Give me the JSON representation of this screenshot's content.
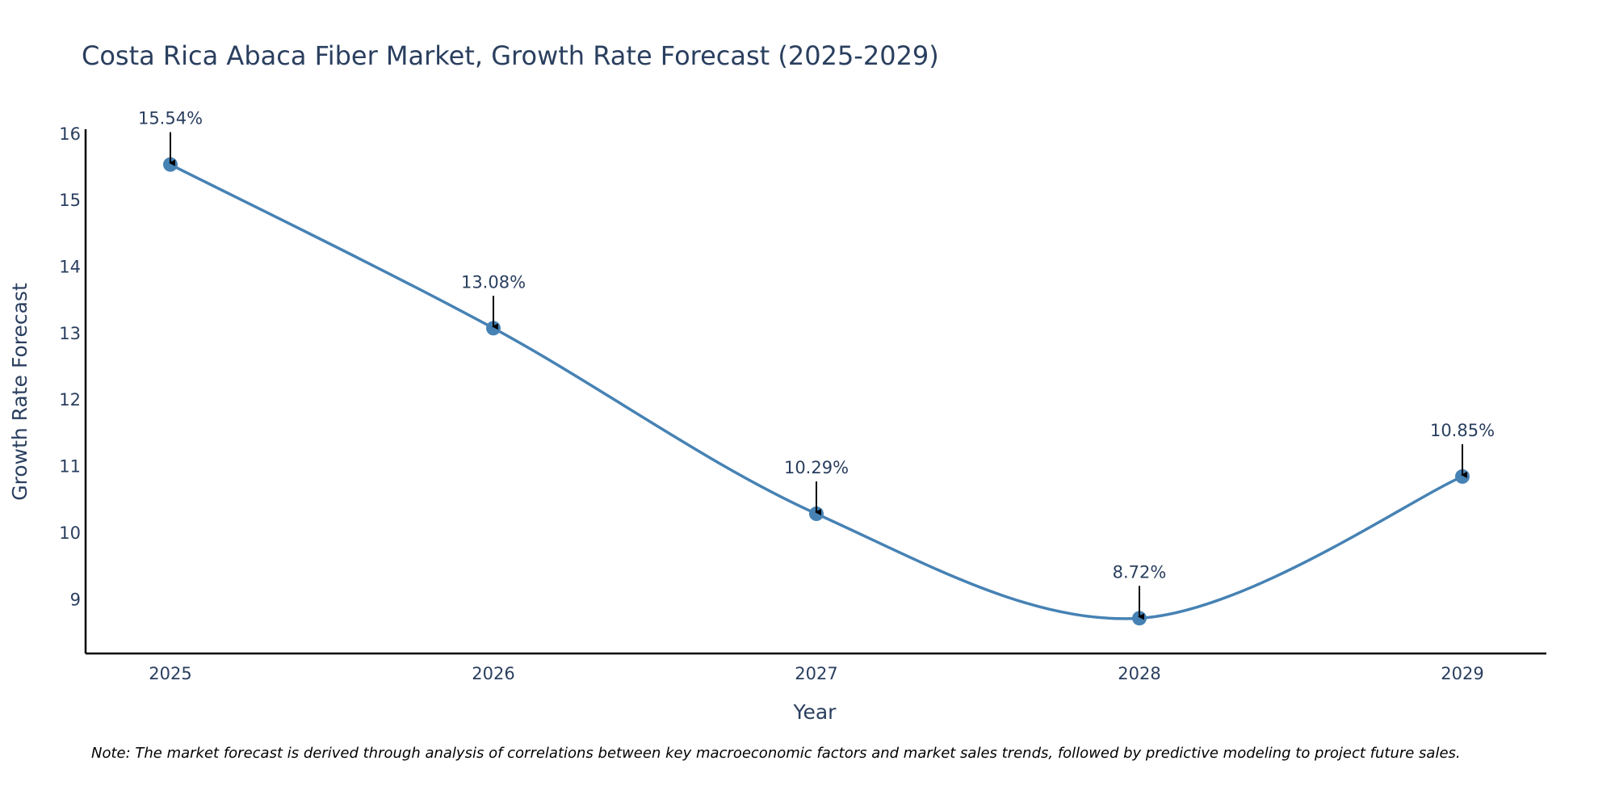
{
  "chart_data": {
    "type": "line",
    "title": "Costa Rica Abaca Fiber Market, Growth Rate Forecast (2025-2029)",
    "xlabel": "Year",
    "ylabel": "Growth Rate Forecast",
    "categories": [
      "2025",
      "2026",
      "2027",
      "2028",
      "2029"
    ],
    "values": [
      15.54,
      13.08,
      10.29,
      8.72,
      10.85
    ],
    "data_labels": [
      "15.54%",
      "13.08%",
      "10.29%",
      "8.72%",
      "10.85%"
    ],
    "y_ticks": [
      9,
      10,
      11,
      12,
      13,
      14,
      15,
      16
    ],
    "ylim": [
      8.19,
      16.07
    ],
    "line_shape": "spline",
    "grid": false,
    "series_color": "#4682b4",
    "annotation_arrow_color": "#000000",
    "axis_color": "#000000",
    "note": "Note: The market forecast is derived through analysis of correlations between key macroeconomic factors and market sales trends, followed by predictive modeling to project future sales."
  }
}
